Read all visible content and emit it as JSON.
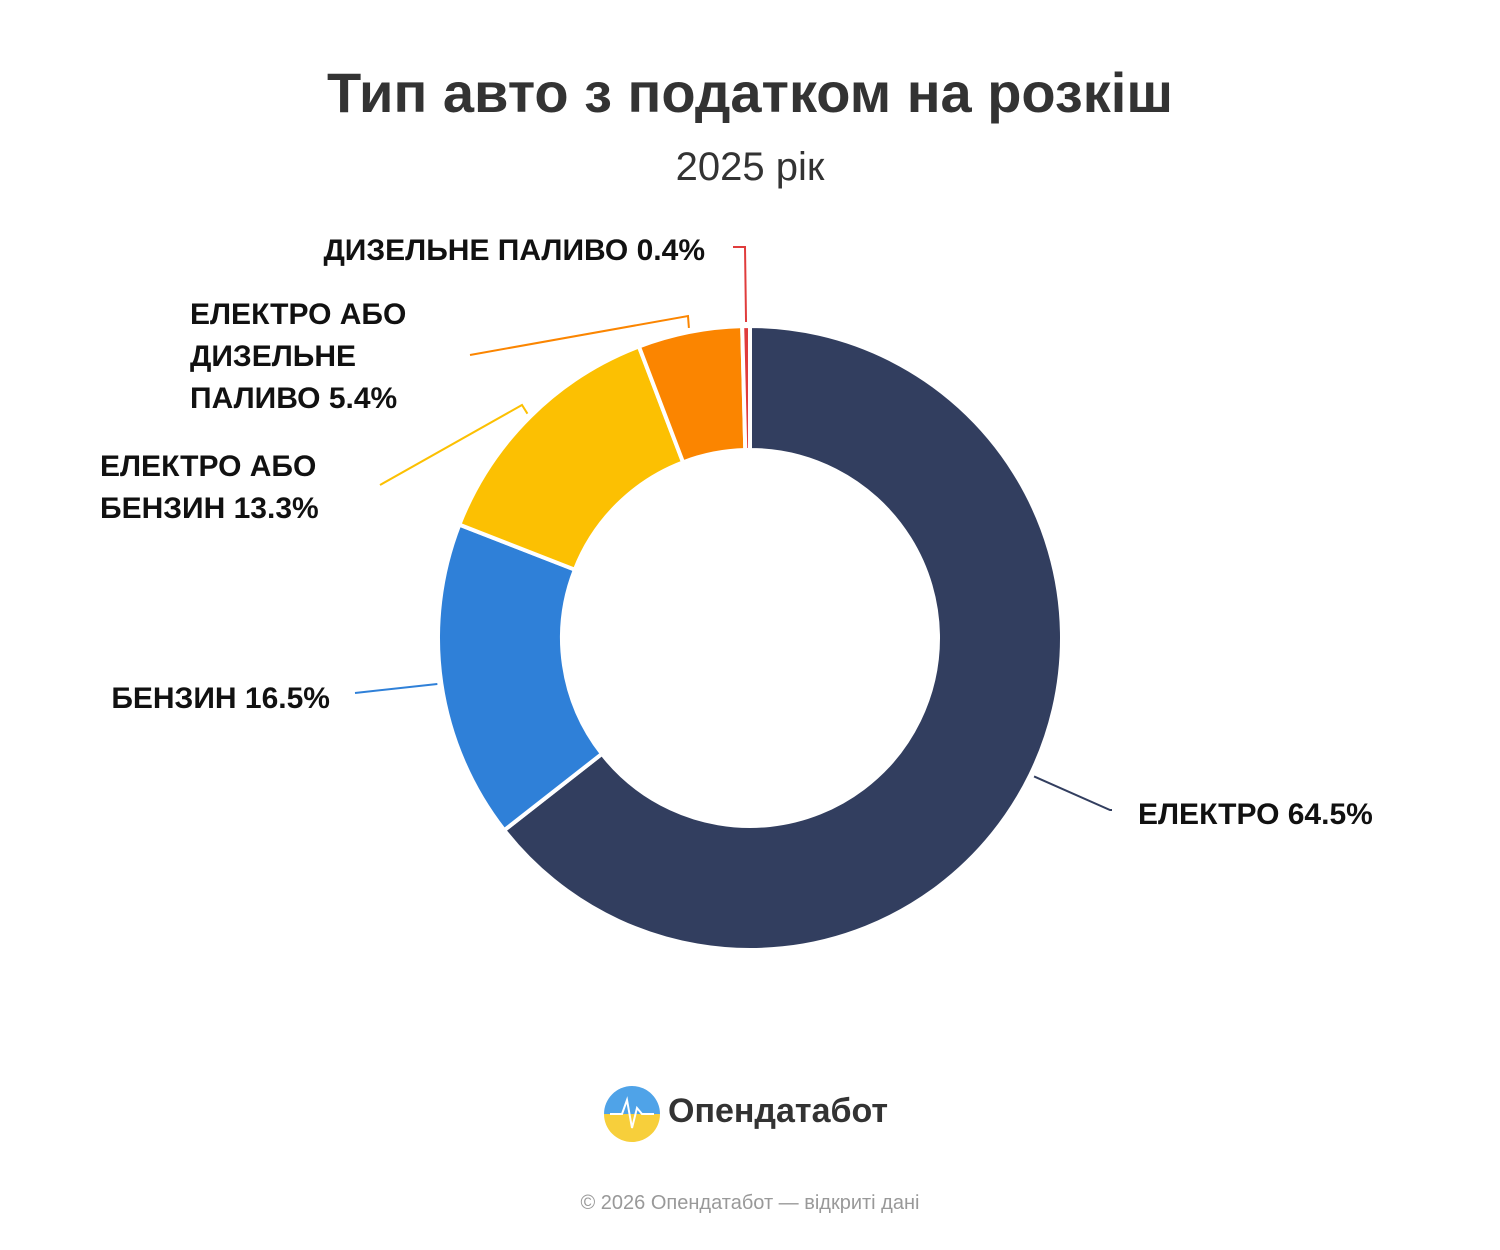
{
  "chart_data": {
    "type": "donut",
    "title": "Тип авто з податком на розкіш",
    "subtitle": "2025 рік",
    "categories": [
      "ЕЛЕКТРО",
      "БЕНЗИН",
      "ЕЛЕКТРО АБО БЕНЗИН",
      "ЕЛЕКТРО АБО ДИЗЕЛЬНЕ ПАЛИВО",
      "ДИЗЕЛЬНЕ ПАЛИВО"
    ],
    "values": [
      64.5,
      16.5,
      13.3,
      5.4,
      0.4
    ],
    "value_labels": [
      "64.5%",
      "16.5%",
      "13.3%",
      "5.4%",
      "0.4%"
    ],
    "colors": [
      "#323e5f",
      "#2f80d8",
      "#fcc002",
      "#fb8500",
      "#e03c3c"
    ]
  },
  "brand": "Опендатабот",
  "copyright": "© 2026 Опендатабот — відкриті дані"
}
